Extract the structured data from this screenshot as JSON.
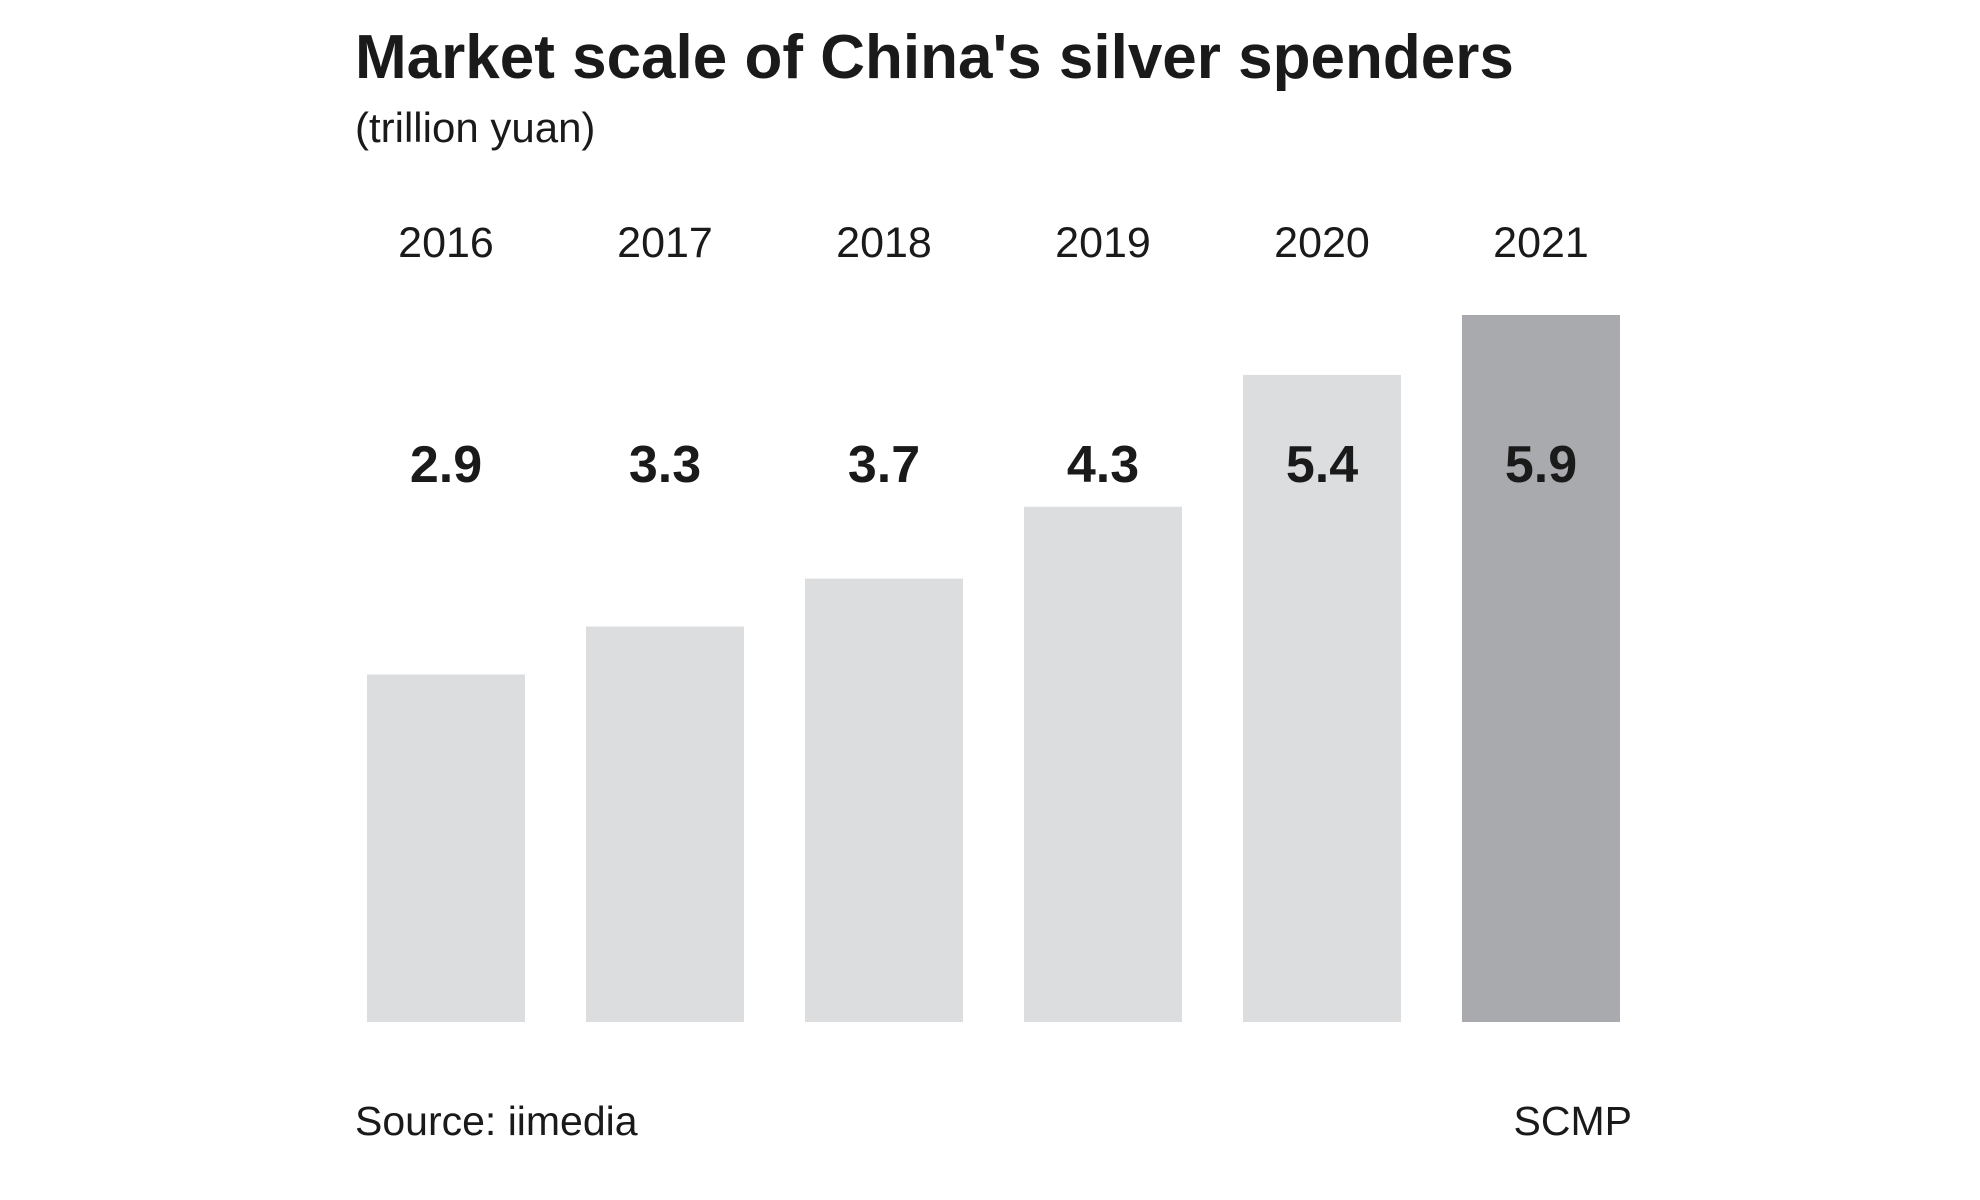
{
  "chart_data": {
    "type": "bar",
    "title": "Market scale of China's silver spenders",
    "subtitle": "(trillion yuan)",
    "categories": [
      "2016",
      "2017",
      "2018",
      "2019",
      "2020",
      "2021"
    ],
    "values": [
      2.9,
      3.3,
      3.7,
      4.3,
      5.4,
      5.9
    ],
    "colors": [
      "#dcdddf",
      "#dcdddf",
      "#dcdddf",
      "#dcdddf",
      "#dcdddf",
      "#a9aaad"
    ],
    "source": "Source: iimedia",
    "credit": "SCMP"
  }
}
